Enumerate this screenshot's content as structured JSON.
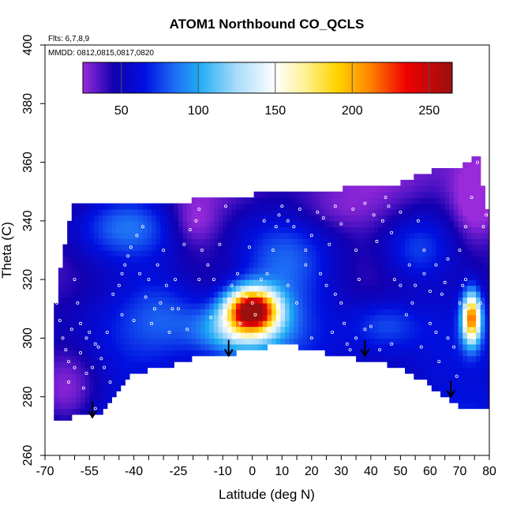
{
  "chart_data": {
    "type": "heatmap",
    "title": "ATOM1 Northbound CO_QCLS",
    "annotations": {
      "flights": "Flts: 6,7,8,9",
      "dates": "MMDD: 0812,0815,0817,0820"
    },
    "xlabel": "Latitude (deg N)",
    "ylabel": "Theta (C)",
    "xlim": [
      -70,
      80
    ],
    "ylim": [
      260,
      400
    ],
    "x_ticks": [
      -70,
      -55,
      -40,
      -25,
      -10,
      0,
      10,
      20,
      30,
      40,
      50,
      60,
      70,
      80
    ],
    "x_tick_labels": [
      "-70",
      "-55",
      "-40",
      "-25",
      "-10",
      "0",
      "10",
      "20",
      "30",
      "40",
      "50",
      "60",
      "70",
      "80"
    ],
    "x_minor_step": 5,
    "y_ticks": [
      260,
      280,
      300,
      320,
      340,
      360,
      380,
      400
    ],
    "y_tick_labels": [
      "260",
      "280",
      "300",
      "320",
      "340",
      "360",
      "380",
      "400"
    ],
    "colorbar": {
      "range": [
        25,
        265
      ],
      "ticks": [
        50,
        100,
        150,
        200,
        250
      ],
      "tick_labels": [
        "50",
        "100",
        "150",
        "200",
        "250"
      ],
      "colors": [
        {
          "v": 25,
          "c": "#9a2bdc"
        },
        {
          "v": 45,
          "c": "#1200b0"
        },
        {
          "v": 65,
          "c": "#0010e0"
        },
        {
          "v": 85,
          "c": "#1e6ef5"
        },
        {
          "v": 100,
          "c": "#1eaaf5"
        },
        {
          "v": 125,
          "c": "#a8dcfa"
        },
        {
          "v": 150,
          "c": "#ffffff"
        },
        {
          "v": 170,
          "c": "#fff090"
        },
        {
          "v": 190,
          "c": "#ffd400"
        },
        {
          "v": 210,
          "c": "#ff8c00"
        },
        {
          "v": 235,
          "c": "#f00000"
        },
        {
          "v": 265,
          "c": "#9a1010"
        }
      ]
    },
    "arrows": [
      {
        "lat": -54,
        "theta": 273
      },
      {
        "lat": -8,
        "theta": 294
      },
      {
        "lat": 38,
        "theta": 294
      },
      {
        "lat": 67,
        "theta": 280
      }
    ],
    "data_top_boundary": [
      [
        -67,
        311
      ],
      [
        -66,
        313
      ],
      [
        -65,
        322
      ],
      [
        -63,
        333
      ],
      [
        -61,
        344
      ],
      [
        -60,
        346
      ],
      [
        -50,
        346
      ],
      [
        -45,
        345
      ],
      [
        -38,
        345
      ],
      [
        -30,
        346
      ],
      [
        -20,
        347
      ],
      [
        -10,
        348
      ],
      [
        0,
        349
      ],
      [
        5,
        350
      ],
      [
        10,
        351
      ],
      [
        20,
        350
      ],
      [
        30,
        351
      ],
      [
        40,
        352
      ],
      [
        50,
        353
      ],
      [
        55,
        355
      ],
      [
        60,
        357
      ],
      [
        65,
        357
      ],
      [
        70,
        358
      ],
      [
        73,
        360
      ],
      [
        75,
        362
      ],
      [
        76,
        363
      ],
      [
        78,
        350
      ],
      [
        80,
        340
      ],
      [
        80,
        322
      ]
    ],
    "data_bottom_boundary": [
      [
        -67,
        272
      ],
      [
        -55,
        274
      ],
      [
        -50,
        275
      ],
      [
        -45,
        282
      ],
      [
        -40,
        288
      ],
      [
        -30,
        290
      ],
      [
        -20,
        293
      ],
      [
        -10,
        294
      ],
      [
        0,
        296
      ],
      [
        10,
        298
      ],
      [
        20,
        296
      ],
      [
        30,
        294
      ],
      [
        40,
        292
      ],
      [
        50,
        290
      ],
      [
        55,
        287
      ],
      [
        60,
        284
      ],
      [
        65,
        280
      ],
      [
        70,
        277
      ],
      [
        75,
        276
      ],
      [
        80,
        276
      ]
    ],
    "field_components": {
      "background": 55,
      "features": [
        {
          "lat": 0,
          "theta": 310,
          "sx": 6,
          "sy": 5,
          "amp": 200
        },
        {
          "lat": -4,
          "theta": 303,
          "sx": 10,
          "sy": 6,
          "amp": 70
        },
        {
          "lat": 74,
          "theta": 307,
          "sx": 2.2,
          "sy": 6,
          "amp": 160
        },
        {
          "lat": -42,
          "theta": 338,
          "sx": 12,
          "sy": 8,
          "amp": 35
        },
        {
          "lat": 10,
          "theta": 325,
          "sx": 12,
          "sy": 12,
          "amp": 35
        },
        {
          "lat": -30,
          "theta": 310,
          "sx": 10,
          "sy": 10,
          "amp": 25
        },
        {
          "lat": 55,
          "theta": 330,
          "sx": 8,
          "sy": 8,
          "amp": 30
        },
        {
          "lat": 45,
          "theta": 305,
          "sx": 8,
          "sy": 6,
          "amp": 25
        }
      ],
      "lows": [
        {
          "lat": -62,
          "theta": 282,
          "sx": 8,
          "sy": 12,
          "amp": 25
        },
        {
          "lat": 25,
          "theta": 343,
          "sx": 12,
          "sy": 6,
          "amp": 15
        },
        {
          "lat": 75,
          "theta": 345,
          "sx": 6,
          "sy": 10,
          "amp": 30
        },
        {
          "lat": -20,
          "theta": 340,
          "sx": 6,
          "sy": 6,
          "amp": 20
        }
      ]
    },
    "sample_points": [
      [
        -66,
        312
      ],
      [
        -65,
        306
      ],
      [
        -64,
        300
      ],
      [
        -63,
        296
      ],
      [
        -62,
        292
      ],
      [
        -60,
        290
      ],
      [
        -58,
        295
      ],
      [
        -56,
        300
      ],
      [
        -55,
        302
      ],
      [
        -53,
        298
      ],
      [
        -52,
        297
      ],
      [
        -51,
        293
      ],
      [
        -50,
        290
      ],
      [
        -49,
        302
      ],
      [
        -47,
        315
      ],
      [
        -45,
        318
      ],
      [
        -44,
        322
      ],
      [
        -43,
        325
      ],
      [
        -42,
        328
      ],
      [
        -41,
        331
      ],
      [
        -39,
        335
      ],
      [
        -37,
        338
      ],
      [
        -35,
        320
      ],
      [
        -33,
        310
      ],
      [
        -32,
        325
      ],
      [
        -31,
        312
      ],
      [
        -29,
        318
      ],
      [
        -27,
        310
      ],
      [
        -25,
        310
      ],
      [
        -23,
        332
      ],
      [
        -21,
        337
      ],
      [
        -19,
        340
      ],
      [
        -18,
        344
      ],
      [
        -17,
        330
      ],
      [
        -15,
        325
      ],
      [
        -13,
        320
      ],
      [
        -10,
        307
      ],
      [
        -8,
        305
      ],
      [
        -7,
        318
      ],
      [
        -5,
        322
      ],
      [
        -3,
        316
      ],
      [
        -2,
        314
      ],
      [
        0,
        312
      ],
      [
        1,
        308
      ],
      [
        2,
        315
      ],
      [
        3,
        320
      ],
      [
        5,
        322
      ],
      [
        7,
        330
      ],
      [
        8,
        338
      ],
      [
        9,
        342
      ],
      [
        10,
        345
      ],
      [
        12,
        340
      ],
      [
        14,
        338
      ],
      [
        16,
        344
      ],
      [
        18,
        330
      ],
      [
        20,
        335
      ],
      [
        22,
        343
      ],
      [
        24,
        341
      ],
      [
        26,
        332
      ],
      [
        28,
        315
      ],
      [
        30,
        312
      ],
      [
        32,
        298
      ],
      [
        33,
        296
      ],
      [
        35,
        300
      ],
      [
        36,
        320
      ],
      [
        38,
        303
      ],
      [
        40,
        304
      ],
      [
        42,
        333
      ],
      [
        44,
        340
      ],
      [
        45,
        348
      ],
      [
        47,
        336
      ],
      [
        48,
        320
      ],
      [
        50,
        318
      ],
      [
        52,
        308
      ],
      [
        54,
        312
      ],
      [
        55,
        318
      ],
      [
        56,
        340
      ],
      [
        58,
        330
      ],
      [
        60,
        305
      ],
      [
        62,
        302
      ],
      [
        64,
        315
      ],
      [
        65,
        319
      ],
      [
        66,
        300
      ],
      [
        68,
        297
      ],
      [
        70,
        312
      ],
      [
        71,
        318
      ],
      [
        72,
        320
      ],
      [
        73,
        310
      ],
      [
        74,
        303
      ],
      [
        75,
        300
      ],
      [
        76,
        305
      ],
      [
        77,
        312
      ],
      [
        78,
        338
      ],
      [
        79,
        342
      ],
      [
        76,
        360
      ],
      [
        74,
        348
      ],
      [
        -60,
        320
      ],
      [
        -58,
        305
      ],
      [
        -56,
        288
      ],
      [
        -54,
        290
      ],
      [
        -57,
        283
      ],
      [
        -53,
        276
      ],
      [
        -48,
        285
      ],
      [
        -62,
        285
      ],
      [
        -61,
        303
      ],
      [
        -59,
        312
      ],
      [
        -4,
        305
      ],
      [
        -6,
        300
      ],
      [
        5,
        303
      ],
      [
        12,
        318
      ],
      [
        15,
        312
      ],
      [
        18,
        325
      ],
      [
        28,
        345
      ],
      [
        30,
        339
      ],
      [
        34,
        344
      ],
      [
        38,
        346
      ],
      [
        41,
        342
      ],
      [
        46,
        345
      ],
      [
        50,
        343
      ],
      [
        53,
        325
      ],
      [
        58,
        322
      ],
      [
        62,
        325
      ],
      [
        66,
        327
      ],
      [
        70,
        330
      ],
      [
        72,
        338
      ],
      [
        -38,
        322
      ],
      [
        -36,
        314
      ],
      [
        -28,
        302
      ],
      [
        -22,
        303
      ],
      [
        -18,
        320
      ],
      [
        -14,
        307
      ],
      [
        -11,
        332
      ],
      [
        -9,
        345
      ],
      [
        -1,
        331
      ],
      [
        4,
        340
      ],
      [
        23,
        322
      ],
      [
        27,
        302
      ],
      [
        31,
        305
      ],
      [
        43,
        296
      ],
      [
        47,
        298
      ],
      [
        57,
        297
      ],
      [
        63,
        292
      ],
      [
        69,
        287
      ],
      [
        -44,
        308
      ],
      [
        -40,
        306
      ],
      [
        -34,
        305
      ],
      [
        -30,
        330
      ],
      [
        -26,
        320
      ],
      [
        20,
        300
      ],
      [
        25,
        318
      ],
      [
        35,
        330
      ],
      [
        60,
        316
      ]
    ]
  }
}
